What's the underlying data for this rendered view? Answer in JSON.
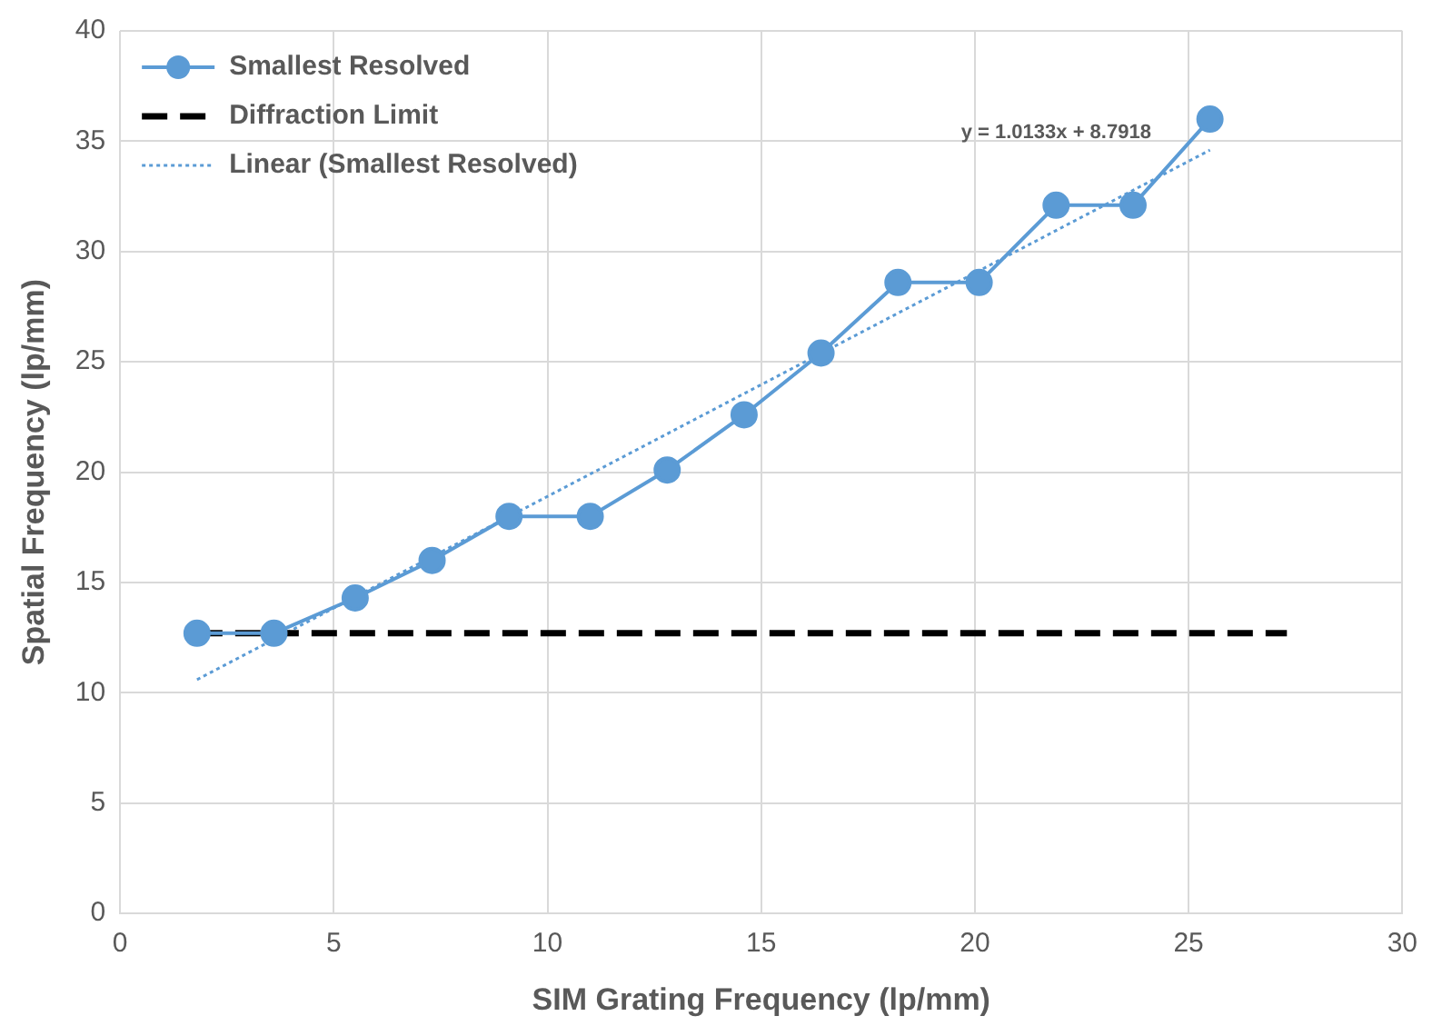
{
  "chart_data": {
    "type": "line",
    "xlabel": "SIM Grating Frequency (lp/mm)",
    "ylabel": "Spatial Frequency (lp/mm)",
    "xlim": [
      0,
      30
    ],
    "xticks": [
      0,
      5,
      10,
      15,
      20,
      25,
      30
    ],
    "ylim": [
      0,
      40
    ],
    "yticks": [
      0,
      5,
      10,
      15,
      20,
      25,
      30,
      35,
      40
    ],
    "grid": true,
    "legend": "top left",
    "series": [
      {
        "name": "Smallest Resolved",
        "color": "#5b9bd5",
        "marker": "circle",
        "line_style": "solid",
        "x": [
          1.8,
          3.6,
          5.5,
          7.3,
          9.1,
          11.0,
          12.8,
          14.6,
          16.4,
          18.2,
          20.1,
          21.9,
          23.7,
          25.5
        ],
        "values": [
          12.7,
          12.7,
          14.3,
          16.0,
          18.0,
          18.0,
          20.1,
          22.6,
          25.4,
          28.6,
          28.6,
          32.1,
          32.1,
          36.0
        ]
      },
      {
        "name": "Diffraction Limit",
        "color": "#000000",
        "marker": "none",
        "line_style": "dashed",
        "x": [
          1.8,
          27.3
        ],
        "values": [
          12.7,
          12.7
        ]
      },
      {
        "name": "Linear (Smallest Resolved)",
        "color": "#5b9bd5",
        "marker": "none",
        "line_style": "dotted",
        "x": [
          1.8,
          25.5
        ],
        "values": [
          10.6,
          34.6
        ]
      }
    ],
    "annotations": [
      "y = 1.0133x + 8.7918"
    ]
  }
}
